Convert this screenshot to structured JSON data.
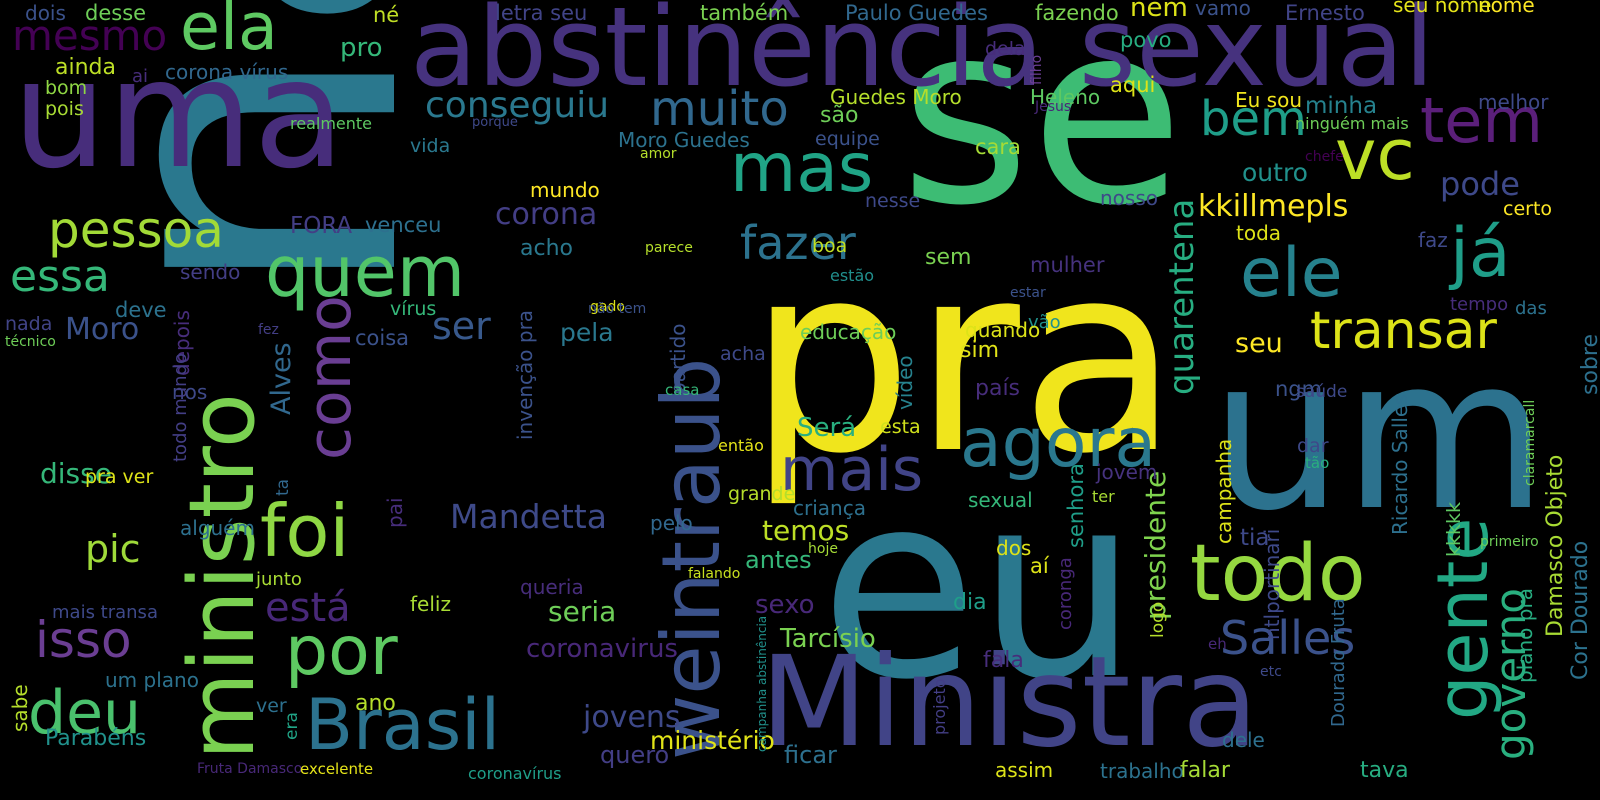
{
  "words": [
    {
      "text": "não",
      "color": "#2a788e"
    },
    {
      "text": "pra",
      "color": "#f0e51c"
    },
    {
      "text": "se",
      "color": "#3dbc74"
    },
    {
      "text": "uma",
      "color": "#472d7b"
    },
    {
      "text": "um",
      "color": "#2c728e"
    },
    {
      "text": "eu",
      "color": "#2a788e"
    },
    {
      "text": "abstinência sexual",
      "color": "#46327e"
    },
    {
      "text": "Ministra",
      "color": "#414487"
    },
    {
      "text": "ministro",
      "color": "#7ad151"
    },
    {
      "text": "weintraub",
      "color": "#3b528b"
    },
    {
      "text": "ela",
      "color": "#5ec962"
    },
    {
      "text": "mesmo",
      "color": "#440154"
    },
    {
      "text": "quem",
      "color": "#52c569"
    },
    {
      "text": "foi",
      "color": "#8fd744"
    },
    {
      "text": "como",
      "color": "#6a3e93"
    },
    {
      "text": "muito",
      "color": "#31688e"
    },
    {
      "text": "conseguiu",
      "color": "#2a788e"
    },
    {
      "text": "mas",
      "color": "#20a486"
    },
    {
      "text": "fazer",
      "color": "#2c728e"
    },
    {
      "text": "mais",
      "color": "#414487"
    },
    {
      "text": "agora",
      "color": "#2a788e"
    },
    {
      "text": "ele",
      "color": "#26828e"
    },
    {
      "text": "já",
      "color": "#1f9e89"
    },
    {
      "text": "vc",
      "color": "#bddf26"
    },
    {
      "text": "tem",
      "color": "#5b1f7a"
    },
    {
      "text": "transar",
      "color": "#dde318"
    },
    {
      "text": "todo",
      "color": "#95d840"
    },
    {
      "text": "gente",
      "color": "#22a884"
    },
    {
      "text": "Brasil",
      "color": "#2c728e"
    },
    {
      "text": "por",
      "color": "#5ec962"
    },
    {
      "text": "pessoa",
      "color": "#a2da37"
    },
    {
      "text": "essa",
      "color": "#35b779"
    },
    {
      "text": "isso",
      "color": "#6b3e93"
    },
    {
      "text": "deu",
      "color": "#4ac16d"
    },
    {
      "text": "pic",
      "color": "#9fda3a"
    },
    {
      "text": "está",
      "color": "#482878"
    },
    {
      "text": "ser",
      "color": "#38598c"
    },
    {
      "text": "bem",
      "color": "#1f9e89"
    },
    {
      "text": "Salles",
      "color": "#3b528b"
    },
    {
      "text": "governo",
      "color": "#29af7f"
    },
    {
      "text": "quarentena",
      "color": "#27ad81"
    },
    {
      "text": "Mandetta",
      "color": "#3e4a89"
    },
    {
      "text": "kkillmepls",
      "color": "#fde725"
    },
    {
      "text": "pode",
      "color": "#3e4989"
    },
    {
      "text": "corona",
      "color": "#433e85"
    },
    {
      "text": "Moro",
      "color": "#3b528b"
    },
    {
      "text": "Alves",
      "color": "#31688e"
    },
    {
      "text": "jovens",
      "color": "#3e4989"
    },
    {
      "text": "seu",
      "color": "#fde725"
    },
    {
      "text": "presidente",
      "color": "#7fd34e"
    },
    {
      "text": "sexual",
      "color": "#34b679"
    },
    {
      "text": "nome",
      "color": "#fde725"
    },
    {
      "text": "nem",
      "color": "#dde318"
    },
    {
      "text": "também",
      "color": "#7ad151"
    },
    {
      "text": "Paulo Guedes",
      "color": "#31688e"
    },
    {
      "text": "fazendo",
      "color": "#7ad151"
    },
    {
      "text": "Ernesto",
      "color": "#414487"
    },
    {
      "text": "seu nome",
      "color": "#e5e419"
    },
    {
      "text": "dois",
      "color": "#3b528b"
    },
    {
      "text": "desse",
      "color": "#6ece58"
    },
    {
      "text": "né",
      "color": "#c0df25"
    },
    {
      "text": "letra seu",
      "color": "#414487"
    },
    {
      "text": "vamo",
      "color": "#3b528b"
    },
    {
      "text": "pro",
      "color": "#35b779"
    },
    {
      "text": "ainda",
      "color": "#bddf26"
    },
    {
      "text": "ai",
      "color": "#472d7b"
    },
    {
      "text": "corona vírus",
      "color": "#31688e"
    },
    {
      "text": "bom",
      "color": "#8fd744"
    },
    {
      "text": "pois",
      "color": "#a8db34"
    },
    {
      "text": "realmente",
      "color": "#5ec962"
    },
    {
      "text": "vida",
      "color": "#2a788e"
    },
    {
      "text": "Guedes Moro",
      "color": "#b5de2b"
    },
    {
      "text": "Heleno",
      "color": "#5ec962"
    },
    {
      "text": "Jesus",
      "color": "#482878"
    },
    {
      "text": "aqui",
      "color": "#dde318"
    },
    {
      "text": "povo",
      "color": "#27ad81"
    },
    {
      "text": "dela",
      "color": "#472d7b"
    },
    {
      "text": "Eu sou",
      "color": "#f1e51d"
    },
    {
      "text": "minha",
      "color": "#26828e"
    },
    {
      "text": "melhor",
      "color": "#3e4989"
    },
    {
      "text": "ninguém mais",
      "color": "#6ece58"
    },
    {
      "text": "chefe",
      "color": "#440154"
    },
    {
      "text": "filho",
      "color": "#6a3e93"
    },
    {
      "text": "são",
      "color": "#6ece58"
    },
    {
      "text": "equipe",
      "color": "#3b528b"
    },
    {
      "text": "porque",
      "color": "#3e4989"
    },
    {
      "text": "amor",
      "color": "#b5de2b"
    },
    {
      "text": "Moro Guedes",
      "color": "#2c728e"
    },
    {
      "text": "cara",
      "color": "#a5db36"
    },
    {
      "text": "outro",
      "color": "#21918c"
    },
    {
      "text": "certo",
      "color": "#fde725"
    },
    {
      "text": "toda",
      "color": "#dde318"
    },
    {
      "text": "faz",
      "color": "#3e4989"
    },
    {
      "text": "mundo",
      "color": "#fde725"
    },
    {
      "text": "acho",
      "color": "#2a788e"
    },
    {
      "text": "nesse",
      "color": "#3e4989"
    },
    {
      "text": "boa",
      "color": "#c2df23"
    },
    {
      "text": "nosso",
      "color": "#3e4989"
    },
    {
      "text": "parece",
      "color": "#b5de2b"
    },
    {
      "text": "sem",
      "color": "#7ad151"
    },
    {
      "text": "estão",
      "color": "#218f8d"
    },
    {
      "text": "FORA",
      "color": "#433e85"
    },
    {
      "text": "venceu",
      "color": "#2d708e"
    },
    {
      "text": "sendo",
      "color": "#433e85"
    },
    {
      "text": "deve",
      "color": "#2c728e"
    },
    {
      "text": "nada",
      "color": "#414487"
    },
    {
      "text": "vírus",
      "color": "#35b779"
    },
    {
      "text": "coisa",
      "color": "#3b528b"
    },
    {
      "text": "pela",
      "color": "#2a788e"
    },
    {
      "text": "mulher",
      "color": "#46327e"
    },
    {
      "text": "gado",
      "color": "#dde318"
    },
    {
      "text": "estar",
      "color": "#3b528b"
    },
    {
      "text": "não tem",
      "color": "#3b528b"
    },
    {
      "text": "vão",
      "color": "#21918c"
    },
    {
      "text": "quando",
      "color": "#dde318"
    },
    {
      "text": "sim",
      "color": "#e2e418"
    },
    {
      "text": "educação",
      "color": "#6ece58"
    },
    {
      "text": "vídeo",
      "color": "#26828e"
    },
    {
      "text": "país",
      "color": "#472d7b"
    },
    {
      "text": "acha",
      "color": "#3e4989"
    },
    {
      "text": "fez",
      "color": "#433e85"
    },
    {
      "text": "técnico",
      "color": "#6ece58"
    },
    {
      "text": "nos",
      "color": "#3e4989"
    },
    {
      "text": "depois",
      "color": "#472d7b"
    },
    {
      "text": "todo mundo",
      "color": "#433e85"
    },
    {
      "text": "partido",
      "color": "#3b528b"
    },
    {
      "text": "casa",
      "color": "#35b779"
    },
    {
      "text": "Será",
      "color": "#29af7f"
    },
    {
      "text": "esta",
      "color": "#d0e11c"
    },
    {
      "text": "invenção pra",
      "color": "#3b528b"
    },
    {
      "text": "pai",
      "color": "#472d7b"
    },
    {
      "text": "ta",
      "color": "#31688e"
    },
    {
      "text": "disse",
      "color": "#35b779"
    },
    {
      "text": "pra ver",
      "color": "#dde318"
    },
    {
      "text": "então",
      "color": "#e5e419"
    },
    {
      "text": "grande",
      "color": "#b5de2b"
    },
    {
      "text": "pelo",
      "color": "#31688e"
    },
    {
      "text": "temos",
      "color": "#bddf26"
    },
    {
      "text": "criança",
      "color": "#2d708e"
    },
    {
      "text": "antes",
      "color": "#35b779"
    },
    {
      "text": "hoje",
      "color": "#a5db36"
    },
    {
      "text": "alguém",
      "color": "#2d708e"
    },
    {
      "text": "junto",
      "color": "#a8db34"
    },
    {
      "text": "feliz",
      "color": "#a8db34"
    },
    {
      "text": "sexo",
      "color": "#482878"
    },
    {
      "text": "falando",
      "color": "#c8e020"
    },
    {
      "text": "queria",
      "color": "#472d7b"
    },
    {
      "text": "seria",
      "color": "#6ece58"
    },
    {
      "text": "Tarcísio",
      "color": "#7ad151"
    },
    {
      "text": "coronavirus",
      "color": "#482878"
    },
    {
      "text": "mais transa",
      "color": "#3e4989"
    },
    {
      "text": "sabe",
      "color": "#b5de2b"
    },
    {
      "text": "um plano",
      "color": "#2c728e"
    },
    {
      "text": "Parabéns",
      "color": "#21918c"
    },
    {
      "text": "ano",
      "color": "#b5de2b"
    },
    {
      "text": "ver",
      "color": "#2d708e"
    },
    {
      "text": "era",
      "color": "#20a486"
    },
    {
      "text": "ministério",
      "color": "#e2e418"
    },
    {
      "text": "quero",
      "color": "#433e85"
    },
    {
      "text": "Fruta Damasco",
      "color": "#482878"
    },
    {
      "text": "excelente",
      "color": "#e5e419"
    },
    {
      "text": "coronavírus",
      "color": "#1f9e89"
    },
    {
      "text": "ficar",
      "color": "#2d708e"
    },
    {
      "text": "assim",
      "color": "#dde318"
    },
    {
      "text": "trabalho",
      "color": "#2c728e"
    },
    {
      "text": "falar",
      "color": "#a5db36"
    },
    {
      "text": "tava",
      "color": "#27ad81"
    },
    {
      "text": "fala",
      "color": "#472d7b"
    },
    {
      "text": "dia",
      "color": "#1f9e89"
    },
    {
      "text": "aí",
      "color": "#dde318"
    },
    {
      "text": "dos",
      "color": "#dde318"
    },
    {
      "text": "senhora",
      "color": "#1f9e89"
    },
    {
      "text": "jovem",
      "color": "#46327e"
    },
    {
      "text": "ter",
      "color": "#a8db34"
    },
    {
      "text": "coronga",
      "color": "#482878"
    },
    {
      "text": "projeto",
      "color": "#433e85"
    },
    {
      "text": "logo",
      "color": "#b5de2b"
    },
    {
      "text": "campanha",
      "color": "#dde318"
    },
    {
      "text": "tia",
      "color": "#3e4989"
    },
    {
      "text": "eh",
      "color": "#482878"
    },
    {
      "text": "etc",
      "color": "#3e4989"
    },
    {
      "text": "dele",
      "color": "#2d708e"
    },
    {
      "text": "ngm",
      "color": "#3b528b"
    },
    {
      "text": "saúde",
      "color": "#3e4989"
    },
    {
      "text": "dar",
      "color": "#3e4989"
    },
    {
      "text": "tão",
      "color": "#29af7f"
    },
    {
      "text": "sobre",
      "color": "#2d708e"
    },
    {
      "text": "das",
      "color": "#2c728e"
    },
    {
      "text": "tempo",
      "color": "#472d7b"
    },
    {
      "text": "primeiro",
      "color": "#6ece58"
    },
    {
      "text": "kkkkk",
      "color": "#5ec962"
    },
    {
      "text": "claramarcall",
      "color": "#6ece58"
    },
    {
      "text": "Ricardo Salles",
      "color": "#2d708e"
    },
    {
      "text": "plano pra",
      "color": "#27ad81"
    },
    {
      "text": "Cor Dourado",
      "color": "#2c728e"
    },
    {
      "text": "Damasco Objeto",
      "color": "#a8db34"
    },
    {
      "text": "Dourado Fruta",
      "color": "#31688e"
    },
    {
      "text": "ntlportinari",
      "color": "#3e4989"
    },
    {
      "text": "campanha abstinência",
      "color": "#21918c"
    }
  ]
}
